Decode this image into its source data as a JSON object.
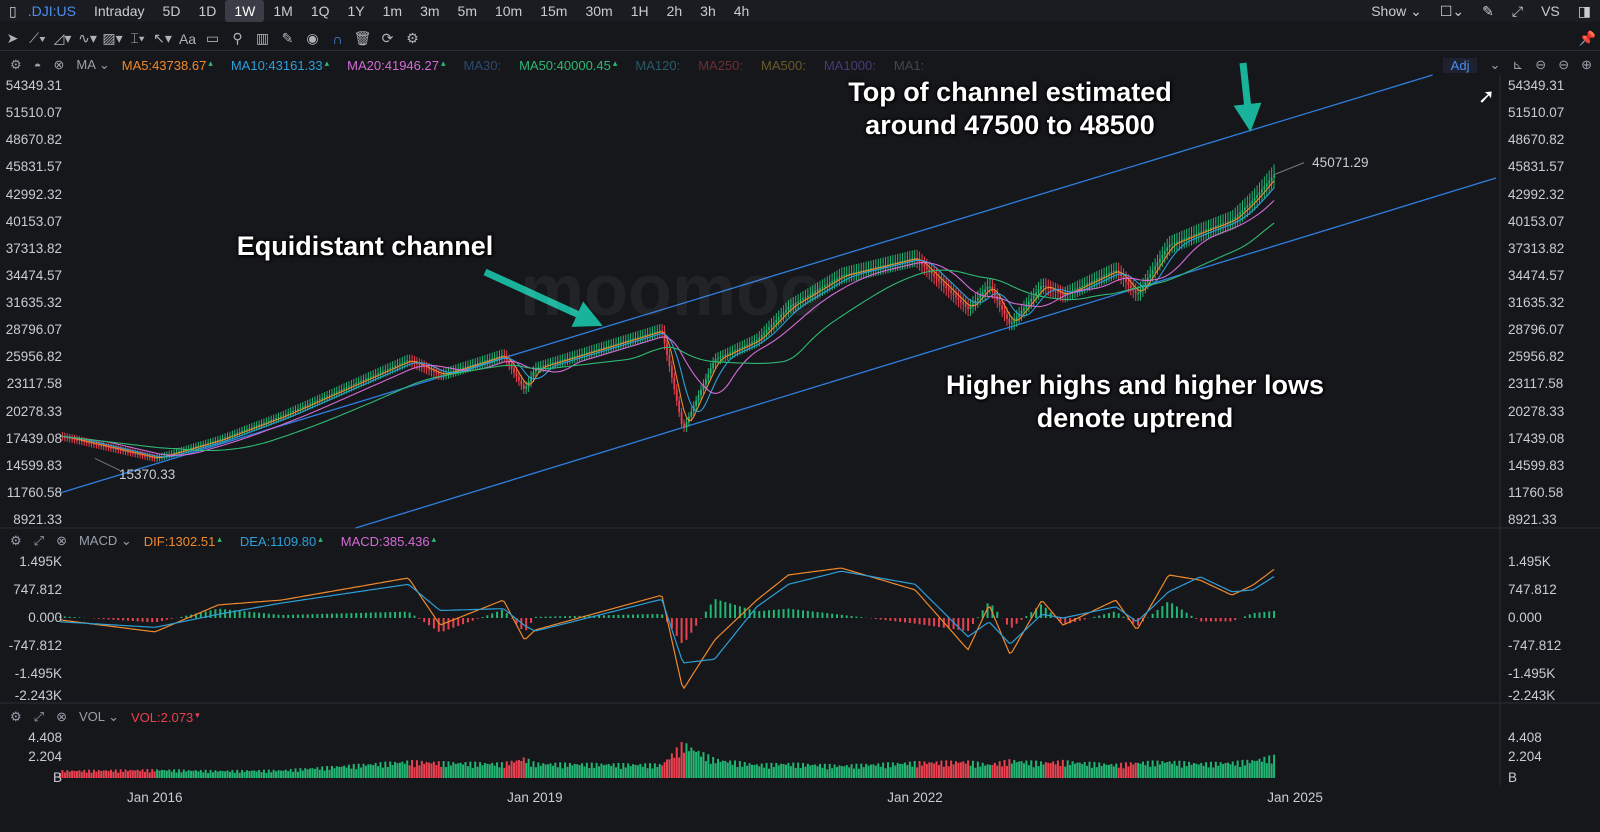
{
  "topbar": {
    "symbol": ".DJI:US",
    "periods": [
      "Intraday",
      "5D",
      "1D",
      "1W",
      "1M",
      "1Q",
      "1Y",
      "1m",
      "3m",
      "5m",
      "10m",
      "15m",
      "30m",
      "1H",
      "2h",
      "3h",
      "4h"
    ],
    "active": "1W",
    "show_label": "Show",
    "vs_label": "VS"
  },
  "toolbar": {
    "icons": [
      "cursor-icon",
      "trend-line-icon",
      "polyline-icon",
      "wave-icon",
      "pattern-icon",
      "measure-icon",
      "arrow-icon",
      "text-icon",
      "comment-icon",
      "zoom-icon",
      "chart-add-icon",
      "pencil-icon",
      "eye-icon",
      "magnet-icon",
      "trash-icon",
      "sync-icon",
      "settings-icon"
    ],
    "text_tool": "Aa"
  },
  "ma_legend": {
    "name": "MA",
    "items": [
      {
        "label": "MA5:43738.67",
        "color": "#f0892b",
        "on": true
      },
      {
        "label": "MA10:43161.33",
        "color": "#2e9fd8",
        "on": true
      },
      {
        "label": "MA20:41946.27",
        "color": "#d46bd6",
        "on": true
      },
      {
        "label": "MA30:",
        "color": "#2c4a70",
        "on": false
      },
      {
        "label": "MA50:40000.45",
        "color": "#2fb873",
        "on": true
      },
      {
        "label": "MA120:",
        "color": "#2a5a66",
        "on": false
      },
      {
        "label": "MA250:",
        "color": "#6a2e33",
        "on": false
      },
      {
        "label": "MA500:",
        "color": "#6a5a2a",
        "on": false
      },
      {
        "label": "MA1000:",
        "color": "#4a3a78",
        "on": false
      },
      {
        "label": "MA1:",
        "color": "#44464d",
        "on": false
      }
    ],
    "adj": "Adj"
  },
  "macd_legend": {
    "name": "MACD",
    "items": [
      {
        "label": "DIF:1302.51",
        "color": "#f0892b"
      },
      {
        "label": "DEA:1109.80",
        "color": "#2e9fd8"
      },
      {
        "label": "MACD:385.436",
        "color": "#d46bd6"
      }
    ]
  },
  "vol_legend": {
    "name": "VOL",
    "items": [
      {
        "label": "VOL:2.073",
        "color": "#e9414f"
      }
    ]
  },
  "annotations": {
    "top": "Top of channel estimated around 47500 to 48500",
    "channel": "Equidistant channel",
    "trend": "Higher highs and higher lows denote uptrend"
  },
  "watermark": "moomoo",
  "colors": {
    "up": "#22b573",
    "down": "#e9414f",
    "channel": "#2f7fe0",
    "arrow": "#19b39b"
  },
  "chart_data": [
    {
      "type": "candlestick",
      "title": "",
      "y_ticks": [
        "54349.31",
        "51510.07",
        "48670.82",
        "45831.57",
        "42992.32",
        "40153.07",
        "37313.82",
        "34474.57",
        "31635.32",
        "28796.07",
        "25956.82",
        "23117.58",
        "20278.33",
        "17439.08",
        "14599.83",
        "11760.58",
        "8921.33"
      ],
      "ylim": [
        8921.33,
        54349.31
      ],
      "x_ticks": [
        "Jan 2016",
        "Jan 2019",
        "Jan 2022",
        "Jan 2025"
      ],
      "close_approx": {
        "dates": [
          "2015-04",
          "2016-01",
          "2016-07",
          "2017-01",
          "2018-01",
          "2018-04",
          "2018-10",
          "2018-12",
          "2019-01",
          "2020-01",
          "2020-03",
          "2020-06",
          "2020-10",
          "2021-01",
          "2021-06",
          "2022-01",
          "2022-06",
          "2022-08",
          "2022-10",
          "2023-01",
          "2023-03",
          "2023-08",
          "2023-10",
          "2024-01",
          "2024-04",
          "2024-07",
          "2024-09",
          "2024-11"
        ],
        "values": [
          17700,
          15370,
          17300,
          19800,
          25670,
          24100,
          26200,
          22530,
          24800,
          28800,
          18340,
          25700,
          27760,
          31200,
          34500,
          36350,
          31000,
          33520,
          29330,
          33500,
          32470,
          35090,
          32470,
          37700,
          39070,
          40330,
          42420,
          45071
        ]
      },
      "labels": {
        "high_last": "45071.29",
        "low": "15370.33"
      },
      "channel": {
        "upper": [
          [
            "2015-04",
            11750
          ],
          [
            "2026-02",
            55500
          ]
        ],
        "lower": [
          [
            "2017-08",
            8085
          ],
          [
            "2026-08",
            44720
          ]
        ]
      },
      "moving_averages": [
        "MA5",
        "MA10",
        "MA20",
        "MA50"
      ]
    },
    {
      "type": "macd",
      "y_ticks": [
        "1.495K",
        "747.812",
        "0.000",
        "-747.812",
        "-1.495K",
        "-2.243K"
      ],
      "ylim": [
        -2243,
        1495
      ],
      "dif": [
        -50,
        -370,
        350,
        480,
        1070,
        -190,
        480,
        -590,
        -320,
        610,
        -1920,
        -590,
        480,
        1150,
        1335,
        750,
        -850,
        350,
        -990,
        480,
        -190,
        480,
        -320,
        1150,
        1010,
        610,
        880,
        1300
      ],
      "dea": [
        -100,
        -250,
        100,
        400,
        900,
        200,
        250,
        -200,
        -350,
        500,
        -1200,
        -1100,
        300,
        900,
        1250,
        900,
        -500,
        -100,
        -700,
        100,
        0,
        300,
        -100,
        700,
        1100,
        700,
        750,
        1110
      ]
    },
    {
      "type": "bar",
      "series_name": "VOL",
      "y_ticks": [
        "4.408",
        "2.204",
        "B"
      ],
      "ylim": [
        0,
        4.408
      ],
      "values": [
        0.7,
        0.8,
        0.7,
        0.75,
        1.6,
        1.5,
        1.4,
        1.9,
        1.4,
        1.3,
        3.3,
        1.8,
        1.3,
        1.4,
        1.2,
        1.5,
        1.6,
        1.3,
        1.7,
        1.5,
        1.6,
        1.3,
        1.5,
        1.6,
        1.4,
        1.5,
        1.7,
        2.073
      ]
    }
  ]
}
